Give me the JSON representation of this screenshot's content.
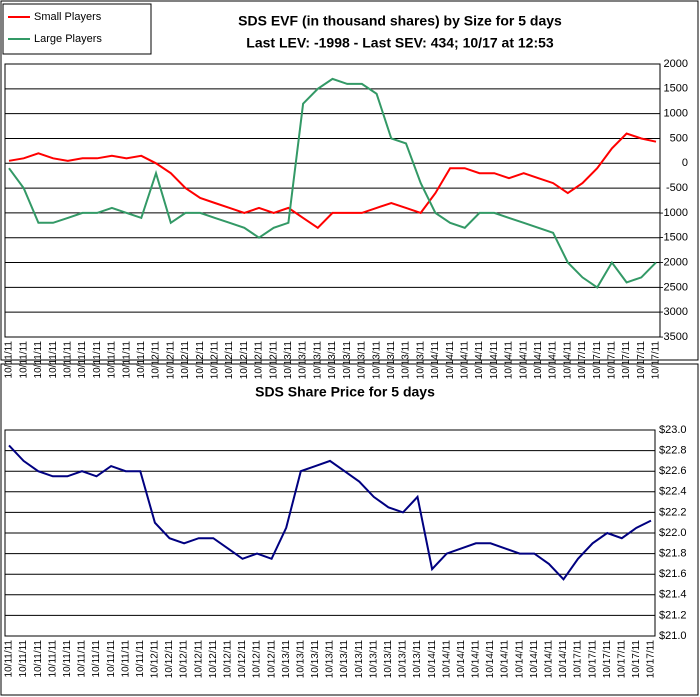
{
  "chart_data": [
    {
      "type": "line",
      "title": "SDS EVF (in thousand shares) by Size for 5 days",
      "subtitle": "Last LEV: -1998 - Last SEV: 434; 10/17 at 12:53",
      "categories": [
        "10/11/11",
        "10/11/11",
        "10/11/11",
        "10/11/11",
        "10/11/11",
        "10/11/11",
        "10/11/11",
        "10/11/11",
        "10/11/11",
        "10/11/11",
        "10/12/11",
        "10/12/11",
        "10/12/11",
        "10/12/11",
        "10/12/11",
        "10/12/11",
        "10/12/11",
        "10/12/11",
        "10/12/11",
        "10/13/11",
        "10/13/11",
        "10/13/11",
        "10/13/11",
        "10/13/11",
        "10/13/11",
        "10/13/11",
        "10/13/11",
        "10/13/11",
        "10/13/11",
        "10/14/11",
        "10/14/11",
        "10/14/11",
        "10/14/11",
        "10/14/11",
        "10/14/11",
        "10/14/11",
        "10/14/11",
        "10/14/11",
        "10/14/11",
        "10/17/11",
        "10/17/11",
        "10/17/11",
        "10/17/11",
        "10/17/11",
        "10/17/11"
      ],
      "series": [
        {
          "name": "Small Players",
          "color": "#ff0000",
          "values": [
            50,
            100,
            200,
            100,
            50,
            100,
            100,
            150,
            100,
            150,
            0,
            -200,
            -500,
            -700,
            -800,
            -900,
            -1000,
            -900,
            -1000,
            -900,
            -1100,
            -1300,
            -1000,
            -1000,
            -1000,
            -900,
            -800,
            -900,
            -1000,
            -600,
            -100,
            -100,
            -200,
            -200,
            -300,
            -200,
            -300,
            -400,
            -600,
            -400,
            -100,
            300,
            600,
            500,
            434
          ]
        },
        {
          "name": "Large Players",
          "color": "#339966",
          "values": [
            -100,
            -500,
            -1200,
            -1200,
            -1100,
            -1000,
            -1000,
            -900,
            -1000,
            -1100,
            -200,
            -1200,
            -1000,
            -1000,
            -1100,
            -1200,
            -1300,
            -1500,
            -1300,
            -1200,
            1200,
            1500,
            1700,
            1600,
            1600,
            1400,
            500,
            400,
            -400,
            -1000,
            -1200,
            -1300,
            -1000,
            -1000,
            -1100,
            -1200,
            -1300,
            -1400,
            -2000,
            -2300,
            -2500,
            -2000,
            -2400,
            -2300,
            -1998
          ]
        }
      ],
      "ylim": [
        -3500,
        2000
      ],
      "yticks": [
        -3500,
        -3000,
        -2500,
        -2000,
        -1500,
        -1000,
        -500,
        0,
        500,
        1000,
        1500,
        2000
      ],
      "grid": true,
      "legend": "top-left"
    },
    {
      "type": "line",
      "title": "SDS Share Price for 5 days",
      "categories": [
        "10/11/11",
        "10/11/11",
        "10/11/11",
        "10/11/11",
        "10/11/11",
        "10/11/11",
        "10/11/11",
        "10/11/11",
        "10/11/11",
        "10/11/11",
        "10/12/11",
        "10/12/11",
        "10/12/11",
        "10/12/11",
        "10/12/11",
        "10/12/11",
        "10/12/11",
        "10/12/11",
        "10/12/11",
        "10/13/11",
        "10/13/11",
        "10/13/11",
        "10/13/11",
        "10/13/11",
        "10/13/11",
        "10/13/11",
        "10/13/11",
        "10/13/11",
        "10/13/11",
        "10/14/11",
        "10/14/11",
        "10/14/11",
        "10/14/11",
        "10/14/11",
        "10/14/11",
        "10/14/11",
        "10/14/11",
        "10/14/11",
        "10/14/11",
        "10/17/11",
        "10/17/11",
        "10/17/11",
        "10/17/11",
        "10/17/11",
        "10/17/11"
      ],
      "values": [
        22.85,
        22.7,
        22.6,
        22.55,
        22.55,
        22.6,
        22.55,
        22.65,
        22.6,
        22.6,
        22.1,
        21.95,
        21.9,
        21.95,
        21.95,
        21.85,
        21.75,
        21.8,
        21.75,
        22.05,
        22.6,
        22.65,
        22.7,
        22.6,
        22.5,
        22.35,
        22.25,
        22.2,
        22.35,
        21.65,
        21.8,
        21.85,
        21.9,
        21.9,
        21.85,
        21.8,
        21.8,
        21.7,
        21.55,
        21.75,
        21.9,
        22.0,
        21.95,
        22.05,
        22.12
      ],
      "color": "#000080",
      "ylim": [
        21.0,
        23.0
      ],
      "yticks": [
        {
          "value": 21.0,
          "label": "$21.0"
        },
        {
          "value": 21.2,
          "label": "$21.2"
        },
        {
          "value": 21.4,
          "label": "$21.4"
        },
        {
          "value": 21.6,
          "label": "$21.6"
        },
        {
          "value": 21.8,
          "label": "$21.8"
        },
        {
          "value": 22.0,
          "label": "$22.0"
        },
        {
          "value": 22.2,
          "label": "$22.2"
        },
        {
          "value": 22.4,
          "label": "$22.4"
        },
        {
          "value": 22.6,
          "label": "$22.6"
        },
        {
          "value": 22.8,
          "label": "$22.8"
        },
        {
          "value": 23.0,
          "label": "$23.0"
        }
      ],
      "grid": true
    }
  ]
}
